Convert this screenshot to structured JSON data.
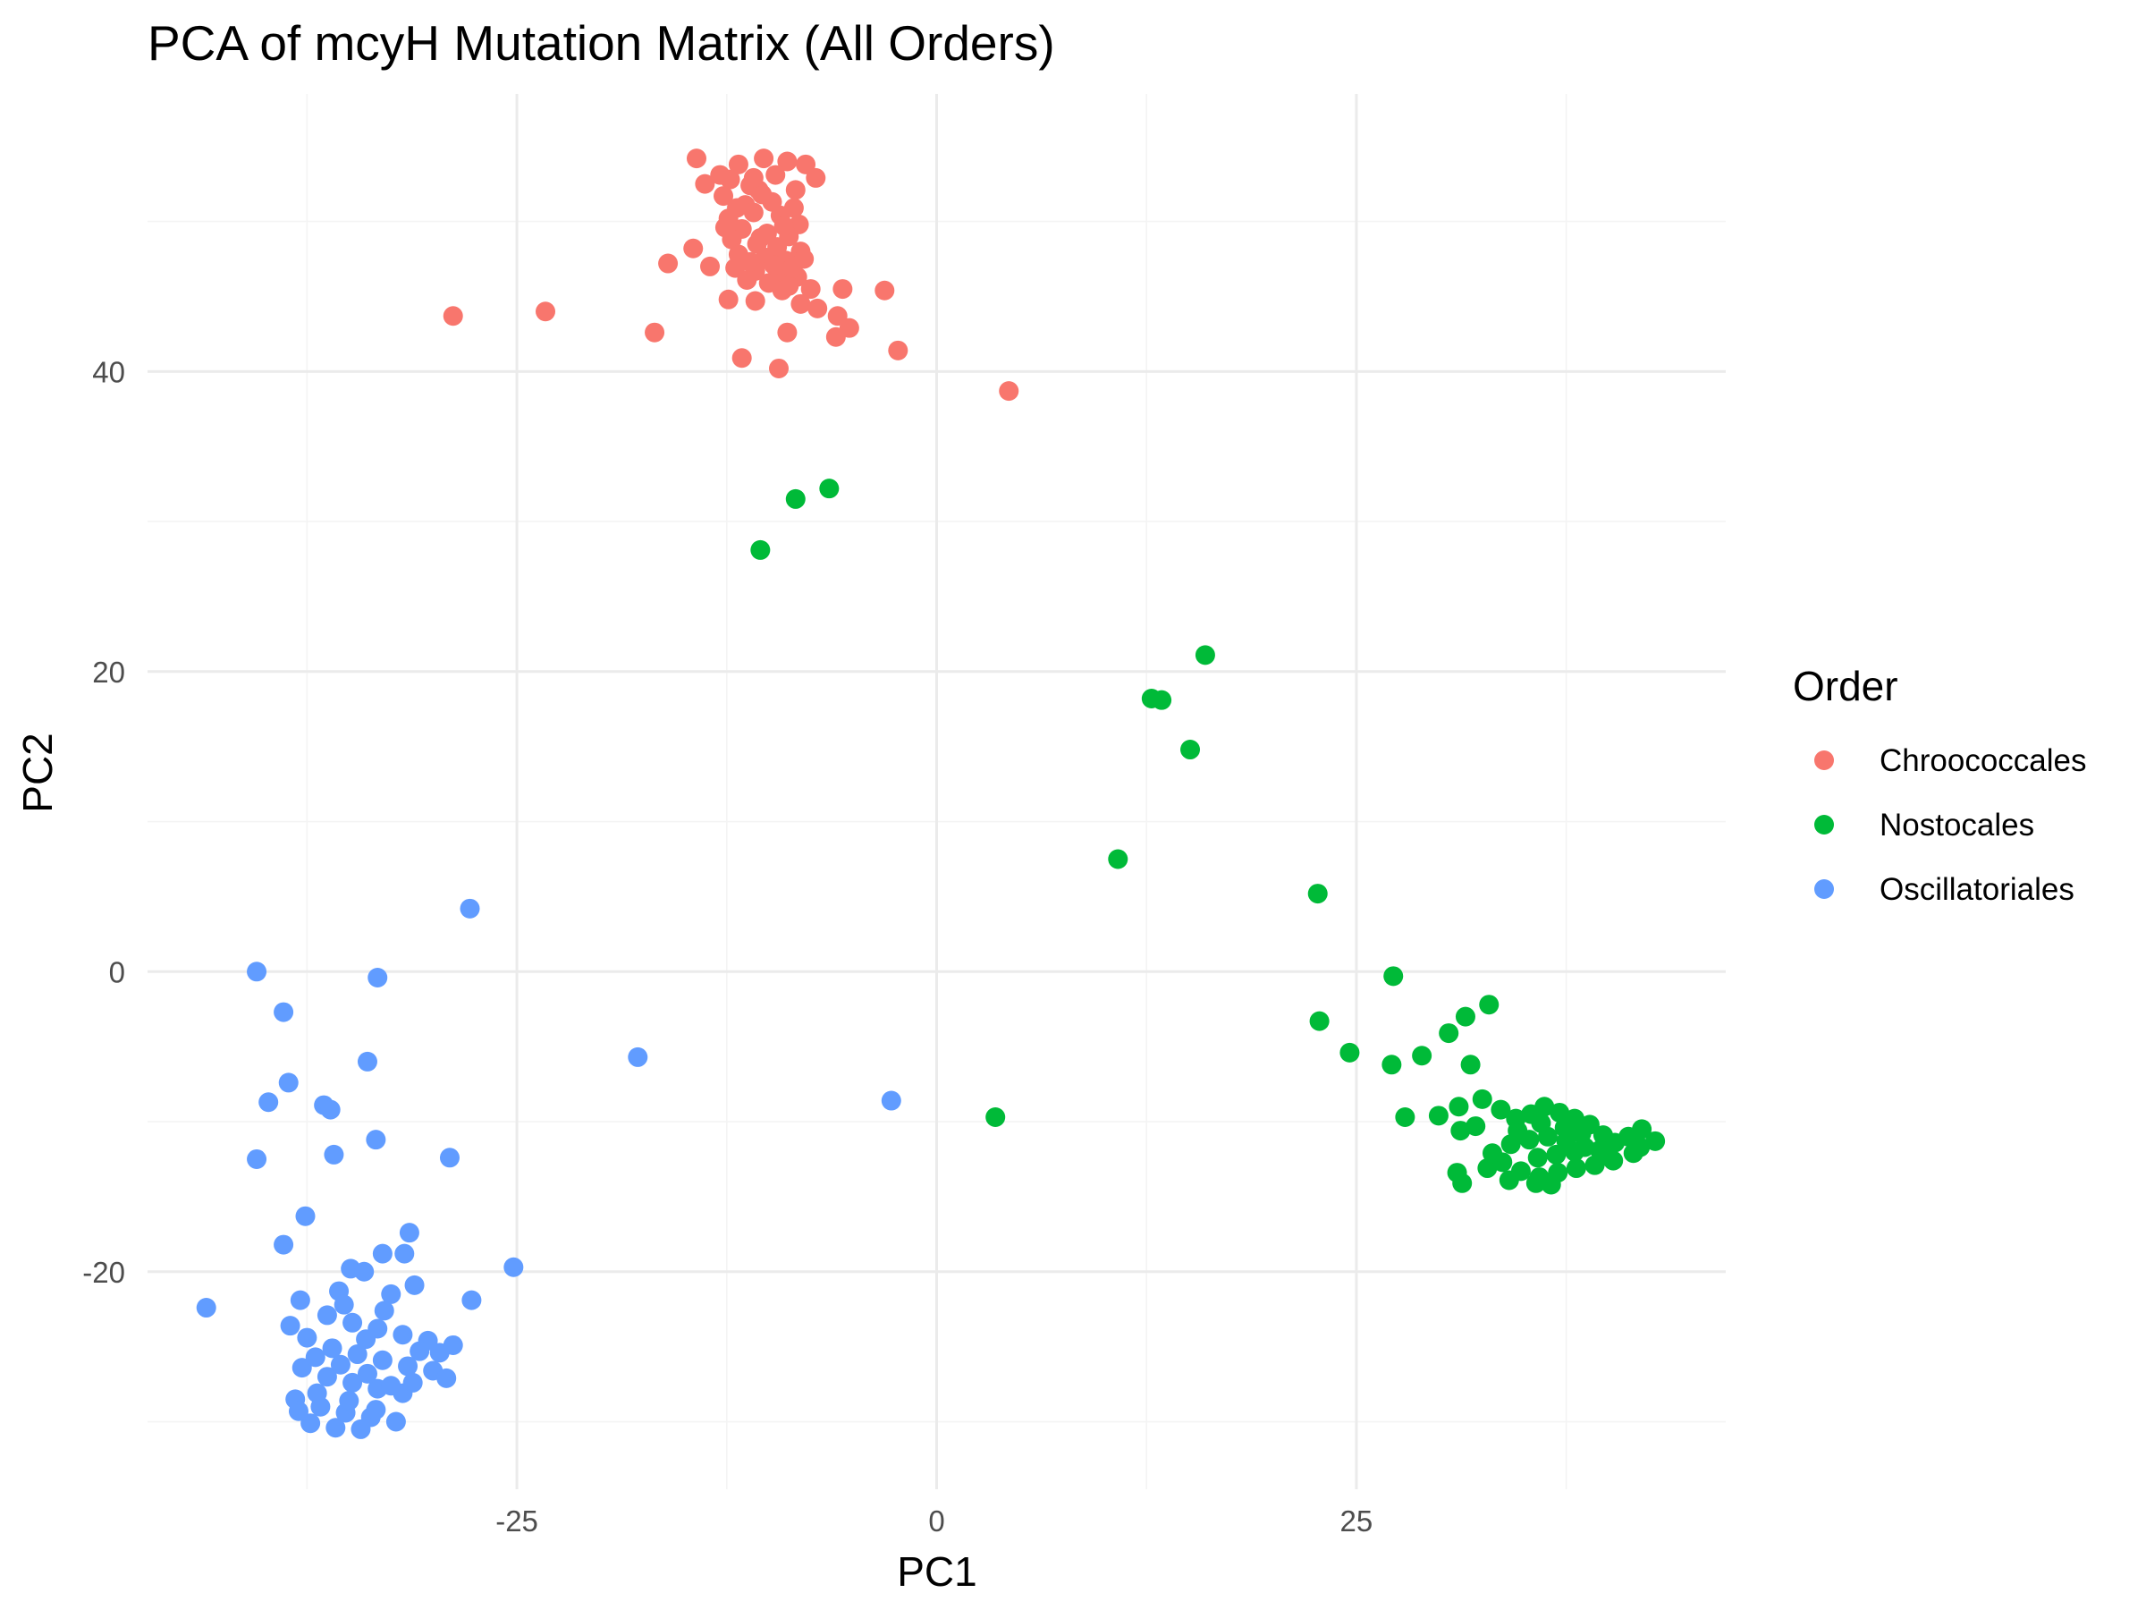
{
  "chart_data": {
    "type": "scatter",
    "title": "PCA of mcyH Mutation Matrix (All Orders)",
    "xlabel": "PC1",
    "ylabel": "PC2",
    "xlim": [
      -47,
      47
    ],
    "ylim": [
      -34.5,
      58.5
    ],
    "x_ticks": [
      -25,
      0,
      25
    ],
    "y_ticks": [
      -20,
      0,
      20,
      40
    ],
    "grid": true,
    "legend": {
      "title": "Order",
      "position": "right"
    },
    "series": [
      {
        "name": "Chroococcales",
        "color": "#F8766D",
        "points": [
          [
            -14.3,
            54.2
          ],
          [
            -10.3,
            54.2
          ],
          [
            -11.8,
            53.8
          ],
          [
            -8.9,
            54.0
          ],
          [
            -7.8,
            53.8
          ],
          [
            -13.8,
            52.5
          ],
          [
            -12.3,
            52.8
          ],
          [
            -7.2,
            52.9
          ],
          [
            -10.6,
            52.1
          ],
          [
            -12.7,
            51.7
          ],
          [
            -11.4,
            51.1
          ],
          [
            -9.8,
            51.3
          ],
          [
            -8.5,
            50.9
          ],
          [
            -12.4,
            50.2
          ],
          [
            -10.9,
            50.6
          ],
          [
            -9.3,
            50.4
          ],
          [
            -8.2,
            49.8
          ],
          [
            -11.6,
            49.5
          ],
          [
            -10.1,
            49.2
          ],
          [
            -8.8,
            49.0
          ],
          [
            -12.2,
            48.8
          ],
          [
            -10.7,
            48.5
          ],
          [
            -9.5,
            48.3
          ],
          [
            -8.1,
            48.0
          ],
          [
            -14.5,
            48.2
          ],
          [
            -11.8,
            47.8
          ],
          [
            -10.2,
            47.6
          ],
          [
            -9.0,
            47.4
          ],
          [
            -16.0,
            47.2
          ],
          [
            -13.5,
            47.0
          ],
          [
            -12.0,
            46.9
          ],
          [
            -10.8,
            46.7
          ],
          [
            -9.4,
            46.5
          ],
          [
            -8.3,
            46.3
          ],
          [
            -11.3,
            46.1
          ],
          [
            -10.0,
            45.9
          ],
          [
            -8.8,
            45.7
          ],
          [
            -7.5,
            45.5
          ],
          [
            -5.6,
            45.5
          ],
          [
            -3.1,
            45.4
          ],
          [
            -9.2,
            45.4
          ],
          [
            -12.4,
            44.8
          ],
          [
            -10.8,
            44.7
          ],
          [
            -8.1,
            44.5
          ],
          [
            -7.1,
            44.2
          ],
          [
            -5.9,
            43.7
          ],
          [
            -5.2,
            42.9
          ],
          [
            -8.9,
            42.6
          ],
          [
            -6.0,
            42.3
          ],
          [
            -16.8,
            42.6
          ],
          [
            -28.8,
            43.7
          ],
          [
            -23.3,
            44.0
          ],
          [
            -2.3,
            41.4
          ],
          [
            -11.6,
            40.9
          ],
          [
            -9.4,
            40.2
          ],
          [
            4.3,
            38.7
          ],
          [
            -11.1,
            52.4
          ],
          [
            -9.6,
            53.1
          ],
          [
            -10.4,
            51.8
          ],
          [
            -11.9,
            50.9
          ],
          [
            -9.1,
            49.7
          ],
          [
            -10.5,
            48.9
          ],
          [
            -11.1,
            47.3
          ],
          [
            -9.7,
            47.1
          ],
          [
            -8.6,
            46.9
          ],
          [
            -12.6,
            49.6
          ],
          [
            -7.9,
            47.5
          ],
          [
            -10.9,
            52.9
          ],
          [
            -8.4,
            52.1
          ],
          [
            -12.9,
            53.1
          ]
        ]
      },
      {
        "name": "Nostocales",
        "color": "#00BA38",
        "points": [
          [
            -6.4,
            32.2
          ],
          [
            -8.4,
            31.5
          ],
          [
            -10.5,
            28.1
          ],
          [
            16.0,
            21.1
          ],
          [
            12.8,
            18.2
          ],
          [
            13.4,
            18.1
          ],
          [
            15.1,
            14.8
          ],
          [
            10.8,
            7.5
          ],
          [
            22.7,
            5.2
          ],
          [
            27.2,
            -0.3
          ],
          [
            32.9,
            -2.2
          ],
          [
            31.5,
            -3.0
          ],
          [
            22.8,
            -3.3
          ],
          [
            30.5,
            -4.1
          ],
          [
            24.6,
            -5.4
          ],
          [
            28.9,
            -5.6
          ],
          [
            27.1,
            -6.2
          ],
          [
            31.8,
            -6.2
          ],
          [
            3.5,
            -9.7
          ],
          [
            27.9,
            -9.7
          ],
          [
            29.9,
            -9.6
          ],
          [
            31.1,
            -9.0
          ],
          [
            32.5,
            -8.5
          ],
          [
            31.2,
            -10.6
          ],
          [
            32.1,
            -10.3
          ],
          [
            31.0,
            -13.4
          ],
          [
            31.3,
            -14.1
          ],
          [
            32.8,
            -13.1
          ],
          [
            33.6,
            -9.2
          ],
          [
            34.5,
            -9.8
          ],
          [
            35.4,
            -9.5
          ],
          [
            36.2,
            -9.0
          ],
          [
            37.1,
            -9.4
          ],
          [
            38.0,
            -9.8
          ],
          [
            38.9,
            -10.2
          ],
          [
            39.7,
            -10.9
          ],
          [
            40.4,
            -11.4
          ],
          [
            41.2,
            -11.0
          ],
          [
            42.0,
            -10.5
          ],
          [
            42.8,
            -11.3
          ],
          [
            41.5,
            -12.1
          ],
          [
            40.3,
            -12.6
          ],
          [
            39.2,
            -12.9
          ],
          [
            38.1,
            -13.1
          ],
          [
            37.0,
            -13.4
          ],
          [
            35.9,
            -13.7
          ],
          [
            34.8,
            -13.3
          ],
          [
            33.7,
            -12.7
          ],
          [
            33.1,
            -12.1
          ],
          [
            34.2,
            -11.5
          ],
          [
            35.3,
            -11.2
          ],
          [
            36.4,
            -11.0
          ],
          [
            37.5,
            -11.3
          ],
          [
            38.6,
            -11.7
          ],
          [
            39.5,
            -11.9
          ],
          [
            35.8,
            -12.4
          ],
          [
            36.9,
            -12.2
          ],
          [
            38.0,
            -12.0
          ],
          [
            34.6,
            -10.6
          ],
          [
            36.0,
            -10.1
          ],
          [
            37.4,
            -10.4
          ],
          [
            38.4,
            -10.8
          ],
          [
            36.6,
            -14.2
          ],
          [
            35.7,
            -14.1
          ],
          [
            34.1,
            -13.9
          ],
          [
            39.9,
            -12.3
          ],
          [
            41.9,
            -11.7
          ]
        ]
      },
      {
        "name": "Oscillatoriales",
        "color": "#619CFF",
        "points": [
          [
            -27.8,
            4.2
          ],
          [
            -40.5,
            0.0
          ],
          [
            -33.3,
            -0.4
          ],
          [
            -38.9,
            -2.7
          ],
          [
            -33.9,
            -6.0
          ],
          [
            -17.8,
            -5.7
          ],
          [
            -38.6,
            -7.4
          ],
          [
            -39.8,
            -8.7
          ],
          [
            -36.5,
            -8.9
          ],
          [
            -36.1,
            -9.2
          ],
          [
            -2.7,
            -8.6
          ],
          [
            -33.4,
            -11.2
          ],
          [
            -40.5,
            -12.5
          ],
          [
            -35.9,
            -12.2
          ],
          [
            -29.0,
            -12.4
          ],
          [
            -37.6,
            -16.3
          ],
          [
            -31.4,
            -17.4
          ],
          [
            -38.9,
            -18.2
          ],
          [
            -33.0,
            -18.8
          ],
          [
            -31.7,
            -18.8
          ],
          [
            -34.9,
            -19.8
          ],
          [
            -34.1,
            -20.0
          ],
          [
            -25.2,
            -19.7
          ],
          [
            -31.1,
            -20.9
          ],
          [
            -32.5,
            -21.5
          ],
          [
            -43.5,
            -22.4
          ],
          [
            -37.9,
            -21.9
          ],
          [
            -27.7,
            -21.9
          ],
          [
            -35.6,
            -21.3
          ],
          [
            -36.3,
            -22.9
          ],
          [
            -34.8,
            -23.4
          ],
          [
            -33.3,
            -23.8
          ],
          [
            -31.8,
            -24.2
          ],
          [
            -30.3,
            -24.6
          ],
          [
            -37.5,
            -24.4
          ],
          [
            -36.0,
            -25.1
          ],
          [
            -34.5,
            -25.5
          ],
          [
            -33.0,
            -25.9
          ],
          [
            -31.5,
            -26.3
          ],
          [
            -30.0,
            -26.6
          ],
          [
            -37.8,
            -26.4
          ],
          [
            -36.3,
            -27.0
          ],
          [
            -34.8,
            -27.4
          ],
          [
            -33.3,
            -27.8
          ],
          [
            -31.8,
            -28.1
          ],
          [
            -38.2,
            -28.5
          ],
          [
            -36.7,
            -29.0
          ],
          [
            -35.2,
            -29.4
          ],
          [
            -33.7,
            -29.7
          ],
          [
            -32.2,
            -30.0
          ],
          [
            -37.3,
            -30.1
          ],
          [
            -35.8,
            -30.4
          ],
          [
            -34.3,
            -30.5
          ],
          [
            -29.6,
            -25.4
          ],
          [
            -28.8,
            -24.9
          ],
          [
            -29.2,
            -27.1
          ],
          [
            -38.5,
            -23.6
          ],
          [
            -35.3,
            -22.2
          ],
          [
            -32.9,
            -22.6
          ],
          [
            -34.0,
            -24.5
          ],
          [
            -36.9,
            -28.1
          ],
          [
            -33.9,
            -26.8
          ],
          [
            -32.5,
            -27.6
          ],
          [
            -35.5,
            -26.2
          ],
          [
            -30.8,
            -25.3
          ],
          [
            -31.2,
            -27.4
          ],
          [
            -37.0,
            -25.7
          ],
          [
            -35.0,
            -28.6
          ],
          [
            -33.4,
            -29.2
          ],
          [
            -38.0,
            -29.3
          ]
        ]
      }
    ]
  }
}
